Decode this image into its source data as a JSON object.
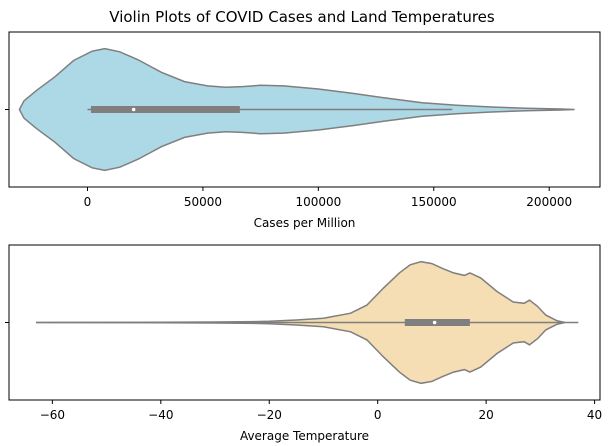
{
  "title": "Violin Plots of COVID Cases and Land Temperatures",
  "chart_data": [
    {
      "type": "violin",
      "orientation": "horizontal",
      "xlabel": "Cases per Million",
      "xlim": [
        -34000,
        222000
      ],
      "ticks": [
        0,
        50000,
        100000,
        150000,
        200000
      ],
      "tick_labels": [
        "0",
        "50000",
        "100000",
        "150000",
        "200000"
      ],
      "fill_color": "#add8e6",
      "edge_color": "#7f7f7f",
      "whisker": [
        0,
        158000
      ],
      "quartiles": [
        1500,
        66000
      ],
      "median": 20000,
      "density": [
        [
          -29500,
          0.0
        ],
        [
          -27500,
          0.14
        ],
        [
          -22000,
          0.31
        ],
        [
          -14000,
          0.53
        ],
        [
          -6000,
          0.79
        ],
        [
          2000,
          0.94
        ],
        [
          7500,
          0.98
        ],
        [
          14000,
          0.93
        ],
        [
          22000,
          0.8
        ],
        [
          32000,
          0.6
        ],
        [
          42000,
          0.45
        ],
        [
          52000,
          0.38
        ],
        [
          60000,
          0.36
        ],
        [
          67000,
          0.37
        ],
        [
          75000,
          0.39
        ],
        [
          85000,
          0.38
        ],
        [
          100000,
          0.33
        ],
        [
          115000,
          0.26
        ],
        [
          130000,
          0.18
        ],
        [
          145000,
          0.11
        ],
        [
          160000,
          0.07
        ],
        [
          175000,
          0.04
        ],
        [
          190000,
          0.02
        ],
        [
          205000,
          0.008
        ],
        [
          211000,
          0.0
        ]
      ]
    },
    {
      "type": "violin",
      "orientation": "horizontal",
      "xlabel": "Average Temperature",
      "xlim": [
        -68,
        41
      ],
      "ticks": [
        -60,
        -40,
        -20,
        0,
        20,
        40
      ],
      "tick_labels": [
        "−60",
        "−40",
        "−20",
        "0",
        "20",
        "40"
      ],
      "fill_color": "#f5deb3",
      "edge_color": "#7f7f7f",
      "whisker": [
        -63,
        37
      ],
      "quartiles": [
        5,
        17
      ],
      "median": 10.5,
      "density": [
        [
          -63,
          0.0
        ],
        [
          -50,
          0.002
        ],
        [
          -40,
          0.004
        ],
        [
          -30,
          0.008
        ],
        [
          -25,
          0.012
        ],
        [
          -20,
          0.02
        ],
        [
          -15,
          0.04
        ],
        [
          -10,
          0.07
        ],
        [
          -5,
          0.15
        ],
        [
          -2,
          0.28
        ],
        [
          1,
          0.55
        ],
        [
          4,
          0.8
        ],
        [
          6,
          0.93
        ],
        [
          8,
          0.98
        ],
        [
          10,
          0.95
        ],
        [
          12,
          0.87
        ],
        [
          14,
          0.8
        ],
        [
          16,
          0.76
        ],
        [
          17,
          0.8
        ],
        [
          19,
          0.72
        ],
        [
          22,
          0.5
        ],
        [
          25,
          0.33
        ],
        [
          27,
          0.31
        ],
        [
          28,
          0.36
        ],
        [
          29.5,
          0.26
        ],
        [
          31,
          0.12
        ],
        [
          33,
          0.03
        ],
        [
          34.5,
          0.0
        ]
      ]
    }
  ]
}
